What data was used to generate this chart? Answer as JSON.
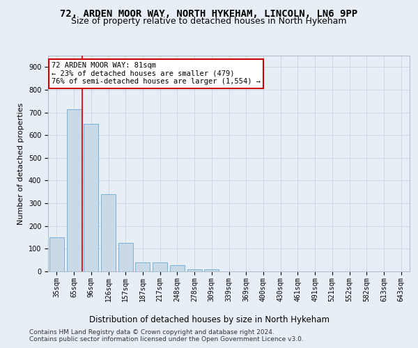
{
  "title1": "72, ARDEN MOOR WAY, NORTH HYKEHAM, LINCOLN, LN6 9PP",
  "title2": "Size of property relative to detached houses in North Hykeham",
  "xlabel": "Distribution of detached houses by size in North Hykeham",
  "ylabel": "Number of detached properties",
  "categories": [
    "35sqm",
    "65sqm",
    "96sqm",
    "126sqm",
    "157sqm",
    "187sqm",
    "217sqm",
    "248sqm",
    "278sqm",
    "309sqm",
    "339sqm",
    "369sqm",
    "400sqm",
    "430sqm",
    "461sqm",
    "491sqm",
    "521sqm",
    "552sqm",
    "582sqm",
    "613sqm",
    "643sqm"
  ],
  "values": [
    150,
    715,
    650,
    340,
    125,
    40,
    40,
    27,
    10,
    8,
    0,
    0,
    0,
    0,
    0,
    0,
    0,
    0,
    0,
    0,
    0
  ],
  "bar_color": "#c9d9e8",
  "bar_edge_color": "#6aaad4",
  "vline_x": 1.5,
  "vline_color": "#cc0000",
  "annotation_text": "72 ARDEN MOOR WAY: 81sqm\n← 23% of detached houses are smaller (479)\n76% of semi-detached houses are larger (1,554) →",
  "annotation_box_color": "#ffffff",
  "annotation_box_edge": "#cc0000",
  "ylim": [
    0,
    950
  ],
  "yticks": [
    0,
    100,
    200,
    300,
    400,
    500,
    600,
    700,
    800,
    900
  ],
  "grid_color": "#d0d8e8",
  "footer": "Contains HM Land Registry data © Crown copyright and database right 2024.\nContains public sector information licensed under the Open Government Licence v3.0.",
  "bg_color": "#e8eef5",
  "axes_bg_color": "#e8eef5",
  "title1_fontsize": 10,
  "title2_fontsize": 9,
  "ann_fontsize": 7.5,
  "tick_fontsize": 7,
  "xlabel_fontsize": 8.5,
  "ylabel_fontsize": 8,
  "footer_fontsize": 6.5
}
